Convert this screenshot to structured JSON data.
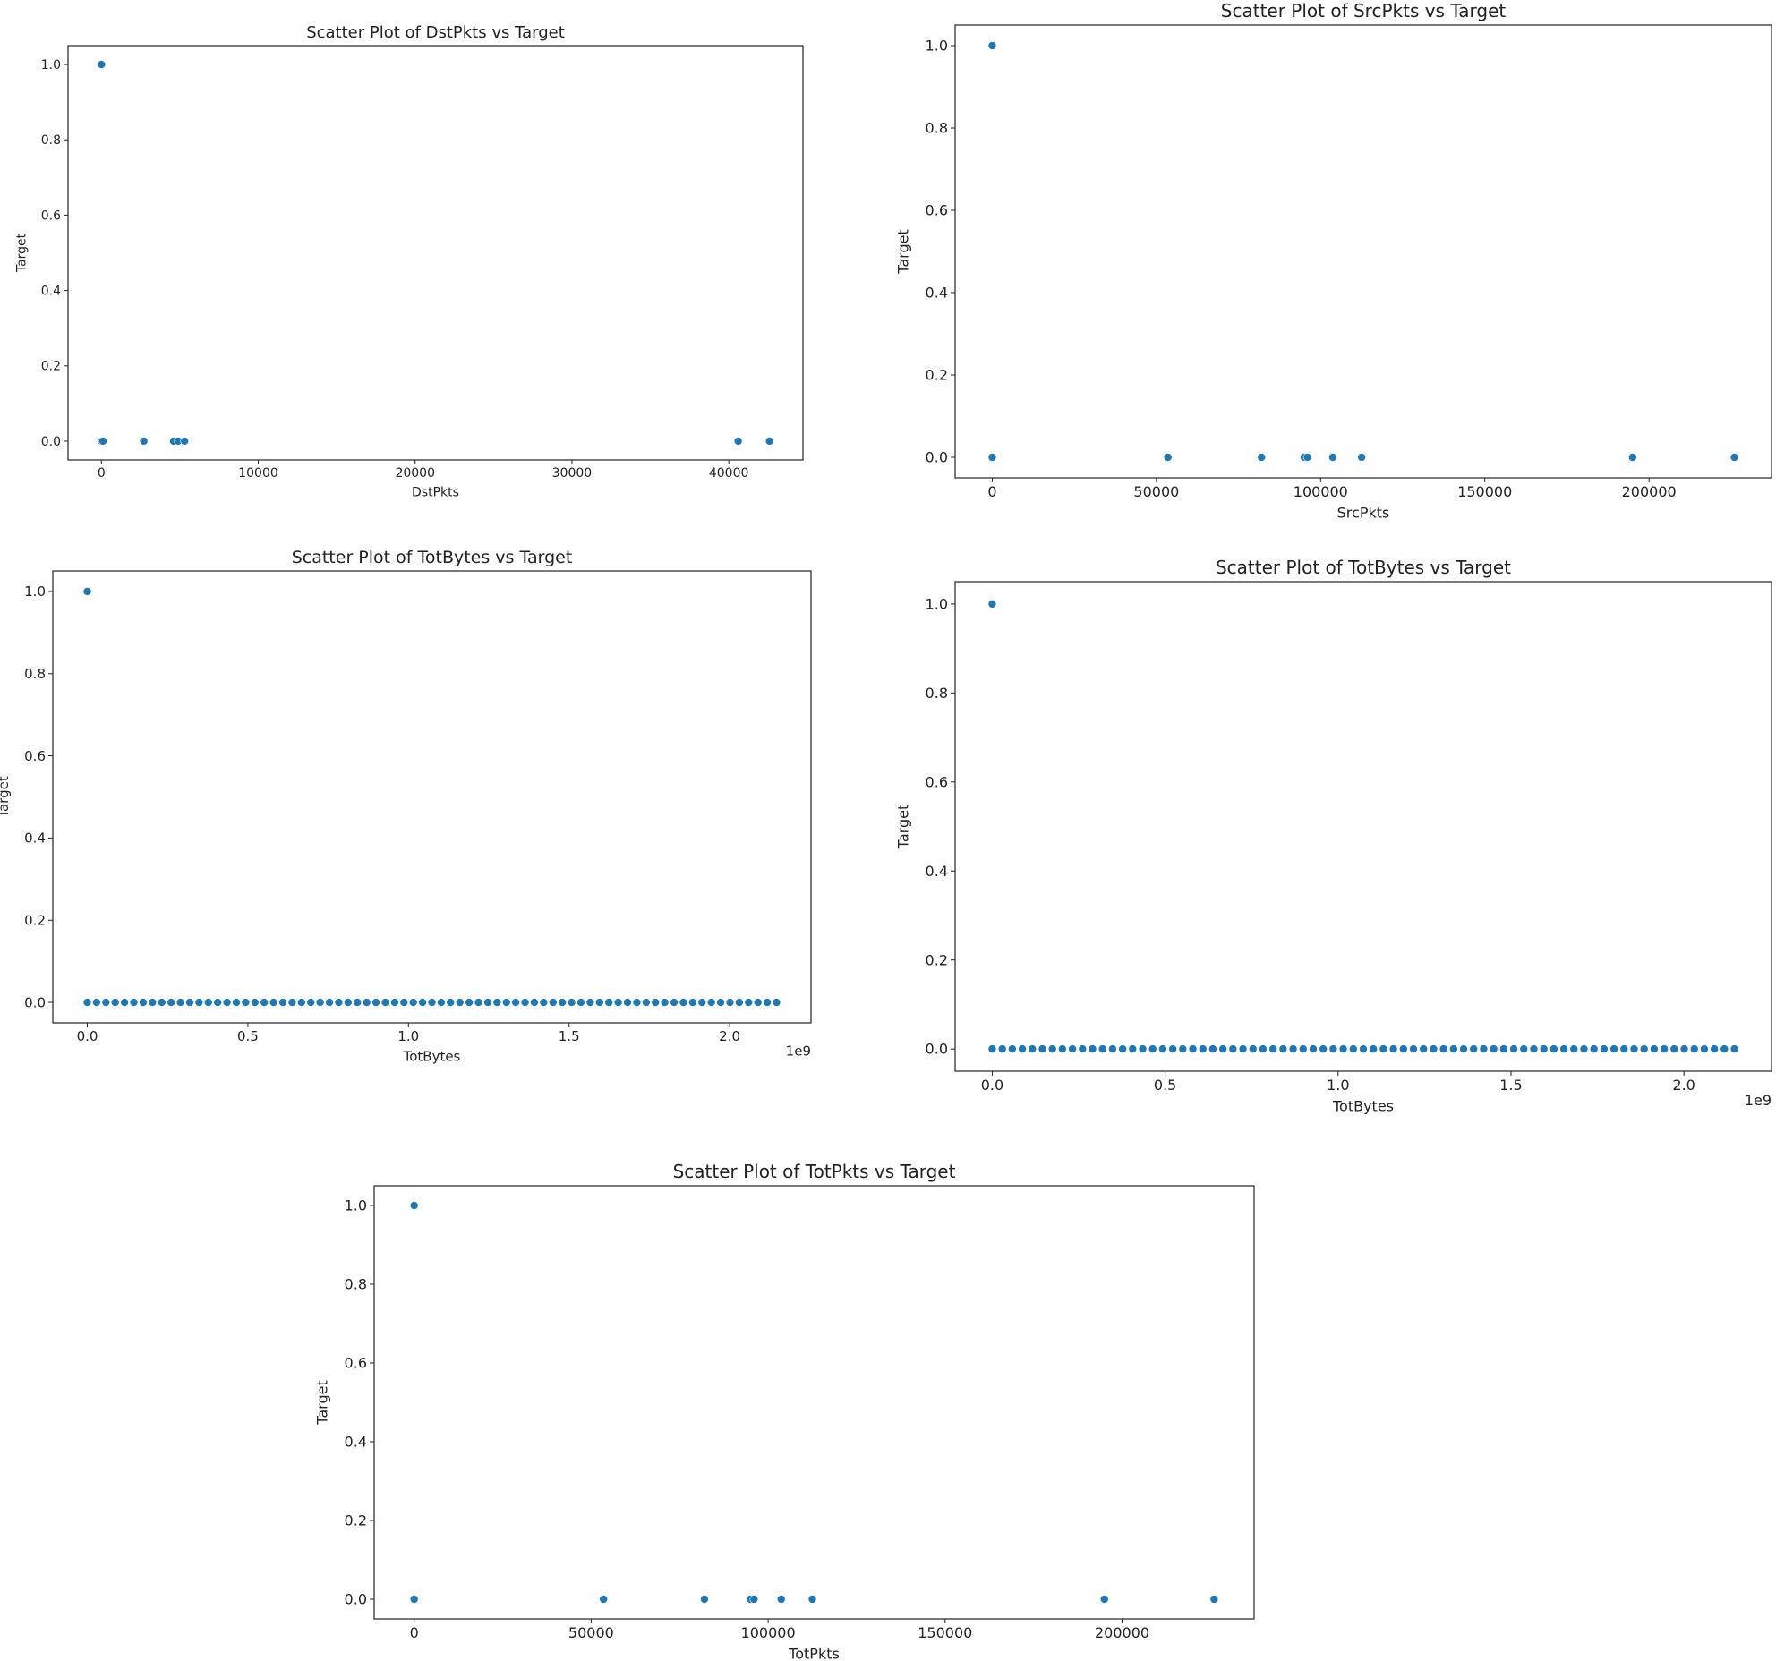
{
  "chart_data": [
    {
      "type": "scatter",
      "title": "Scatter Plot of DstPkts vs Target",
      "xlabel": "DstPkts",
      "ylabel": "Target",
      "color": "#1f77b4",
      "x": [
        0,
        0,
        100,
        2700,
        4600,
        4900,
        5300,
        40600,
        42600
      ],
      "y": [
        1,
        0,
        0,
        0,
        0,
        0,
        0,
        0,
        0
      ],
      "xlim": [
        -2130,
        44730
      ],
      "ylim": [
        -0.05,
        1.05
      ],
      "xticks": [
        0,
        10000,
        20000,
        30000,
        40000
      ],
      "yticks": [
        {
          "value": 0,
          "label": "0.0"
        },
        0.2,
        0.4,
        0.6,
        0.8,
        {
          "value": 1,
          "label": "1.0"
        }
      ]
    },
    {
      "type": "scatter",
      "title": "Scatter Plot of SrcPkts vs Target",
      "xlabel": "SrcPkts",
      "ylabel": "Target",
      "color": "#1f77b4",
      "x": [
        0,
        0,
        53500,
        82000,
        95000,
        96000,
        103700,
        112500,
        195000,
        226000
      ],
      "y": [
        1,
        0,
        0,
        0,
        0,
        0,
        0,
        0,
        0,
        0
      ],
      "xlim": [
        -11300,
        237300
      ],
      "ylim": [
        -0.05,
        1.05
      ],
      "xticks": [
        0,
        50000,
        100000,
        150000,
        200000
      ],
      "yticks": [
        {
          "value": 0,
          "label": "0.0"
        },
        0.2,
        0.4,
        0.6,
        0.8,
        {
          "value": 1,
          "label": "1.0"
        }
      ]
    },
    {
      "type": "scatter",
      "title": "Scatter Plot of TotBytes vs Target",
      "xlabel": "TotBytes",
      "ylabel": "Target",
      "color": "#1f77b4",
      "x_offset_label": "1e9",
      "x": [
        0,
        0,
        29000000,
        58000000,
        87000000,
        116000000,
        145000000,
        174000000,
        203000000,
        232000000,
        261000000,
        290000000,
        319000000,
        348000000,
        377000000,
        406000000,
        435000000,
        464000000,
        493000000,
        522000000,
        551000000,
        580000000,
        609000000,
        638000000,
        667000000,
        696000000,
        725000000,
        754000000,
        783000000,
        812000000,
        841000000,
        870000000,
        899000000,
        928000000,
        957000000,
        986000000,
        1015000000,
        1044000000,
        1073000000,
        1102000000,
        1131000000,
        1160000000,
        1189000000,
        1218000000,
        1247000000,
        1276000000,
        1305000000,
        1334000000,
        1363000000,
        1392000000,
        1421000000,
        1450000000,
        1479000000,
        1508000000,
        1537000000,
        1566000000,
        1595000000,
        1624000000,
        1653000000,
        1682000000,
        1711000000,
        1740000000,
        1769000000,
        1798000000,
        1827000000,
        1856000000,
        1885000000,
        1914000000,
        1943000000,
        1972000000,
        2001000000,
        2030000000,
        2059000000,
        2088000000,
        2117000000,
        2146000000
      ],
      "y": [
        1,
        0,
        0,
        0,
        0,
        0,
        0,
        0,
        0,
        0,
        0,
        0,
        0,
        0,
        0,
        0,
        0,
        0,
        0,
        0,
        0,
        0,
        0,
        0,
        0,
        0,
        0,
        0,
        0,
        0,
        0,
        0,
        0,
        0,
        0,
        0,
        0,
        0,
        0,
        0,
        0,
        0,
        0,
        0,
        0,
        0,
        0,
        0,
        0,
        0,
        0,
        0,
        0,
        0,
        0,
        0,
        0,
        0,
        0,
        0,
        0,
        0,
        0,
        0,
        0,
        0,
        0,
        0,
        0,
        0,
        0,
        0,
        0,
        0,
        0,
        0
      ],
      "xlim": [
        -107300000,
        2253300000
      ],
      "ylim": [
        -0.05,
        1.05
      ],
      "xticks": [
        {
          "value": 0,
          "label": "0.0"
        },
        {
          "value": 500000000,
          "label": "0.5"
        },
        {
          "value": 1000000000,
          "label": "1.0"
        },
        {
          "value": 1500000000,
          "label": "1.5"
        },
        {
          "value": 2000000000,
          "label": "2.0"
        }
      ],
      "yticks": [
        {
          "value": 0,
          "label": "0.0"
        },
        0.2,
        0.4,
        0.6,
        0.8,
        {
          "value": 1,
          "label": "1.0"
        }
      ]
    },
    {
      "type": "scatter",
      "title": "Scatter Plot of TotBytes vs Target",
      "xlabel": "TotBytes",
      "ylabel": "Target",
      "color": "#1f77b4",
      "x_offset_label": "1e9",
      "x": [
        0,
        0,
        29000000,
        58000000,
        87000000,
        116000000,
        145000000,
        174000000,
        203000000,
        232000000,
        261000000,
        290000000,
        319000000,
        348000000,
        377000000,
        406000000,
        435000000,
        464000000,
        493000000,
        522000000,
        551000000,
        580000000,
        609000000,
        638000000,
        667000000,
        696000000,
        725000000,
        754000000,
        783000000,
        812000000,
        841000000,
        870000000,
        899000000,
        928000000,
        957000000,
        986000000,
        1015000000,
        1044000000,
        1073000000,
        1102000000,
        1131000000,
        1160000000,
        1189000000,
        1218000000,
        1247000000,
        1276000000,
        1305000000,
        1334000000,
        1363000000,
        1392000000,
        1421000000,
        1450000000,
        1479000000,
        1508000000,
        1537000000,
        1566000000,
        1595000000,
        1624000000,
        1653000000,
        1682000000,
        1711000000,
        1740000000,
        1769000000,
        1798000000,
        1827000000,
        1856000000,
        1885000000,
        1914000000,
        1943000000,
        1972000000,
        2001000000,
        2030000000,
        2059000000,
        2088000000,
        2117000000,
        2146000000
      ],
      "y": [
        1,
        0,
        0,
        0,
        0,
        0,
        0,
        0,
        0,
        0,
        0,
        0,
        0,
        0,
        0,
        0,
        0,
        0,
        0,
        0,
        0,
        0,
        0,
        0,
        0,
        0,
        0,
        0,
        0,
        0,
        0,
        0,
        0,
        0,
        0,
        0,
        0,
        0,
        0,
        0,
        0,
        0,
        0,
        0,
        0,
        0,
        0,
        0,
        0,
        0,
        0,
        0,
        0,
        0,
        0,
        0,
        0,
        0,
        0,
        0,
        0,
        0,
        0,
        0,
        0,
        0,
        0,
        0,
        0,
        0,
        0,
        0,
        0,
        0,
        0,
        0
      ],
      "xlim": [
        -107300000,
        2253300000
      ],
      "ylim": [
        -0.05,
        1.05
      ],
      "xticks": [
        {
          "value": 0,
          "label": "0.0"
        },
        {
          "value": 500000000,
          "label": "0.5"
        },
        {
          "value": 1000000000,
          "label": "1.0"
        },
        {
          "value": 1500000000,
          "label": "1.5"
        },
        {
          "value": 2000000000,
          "label": "2.0"
        }
      ],
      "yticks": [
        {
          "value": 0,
          "label": "0.0"
        },
        0.2,
        0.4,
        0.6,
        0.8,
        {
          "value": 1,
          "label": "1.0"
        }
      ]
    },
    {
      "type": "scatter",
      "title": "Scatter Plot of TotPkts vs Target",
      "xlabel": "TotPkts",
      "ylabel": "Target",
      "color": "#1f77b4",
      "x": [
        0,
        0,
        53500,
        82000,
        95000,
        96000,
        103700,
        112500,
        195000,
        226000
      ],
      "y": [
        1,
        0,
        0,
        0,
        0,
        0,
        0,
        0,
        0,
        0
      ],
      "xlim": [
        -11300,
        237300
      ],
      "ylim": [
        -0.05,
        1.05
      ],
      "xticks": [
        0,
        50000,
        100000,
        150000,
        200000
      ],
      "yticks": [
        {
          "value": 0,
          "label": "0.0"
        },
        0.2,
        0.4,
        0.6,
        0.8,
        {
          "value": 1,
          "label": "1.0"
        }
      ]
    }
  ]
}
